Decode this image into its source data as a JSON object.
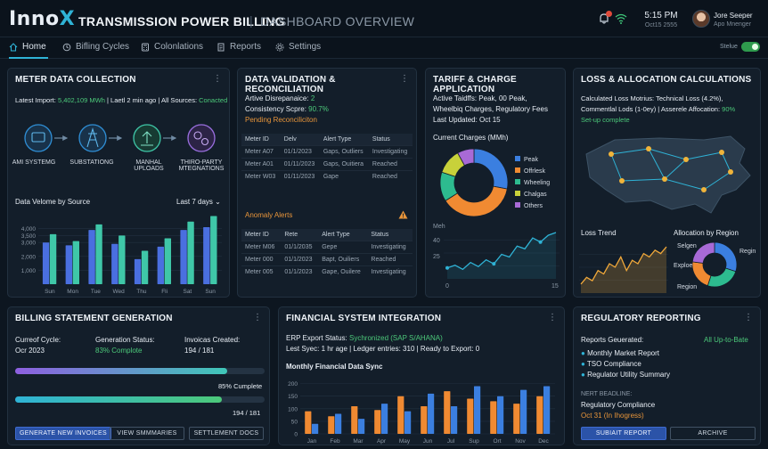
{
  "header": {
    "logo_main": "Inno",
    "logo_accent": "X",
    "title": "TRANSMISSION POWER BILLING",
    "separator": "|",
    "subtitle": "DASHBOARD OVERVIEW",
    "time": "5:15 PM",
    "date": "Oct15 2555",
    "user_name": "Jore Seeper",
    "user_role": "Apo Mnenger"
  },
  "nav": {
    "items": [
      {
        "label": "Home",
        "icon": "home-icon"
      },
      {
        "label": "Bifling Cycles",
        "icon": "cycle-icon"
      },
      {
        "label": "Colonlations",
        "icon": "calculator-icon"
      },
      {
        "label": "Reports",
        "icon": "report-icon"
      },
      {
        "label": "Settings",
        "icon": "gear-icon"
      }
    ],
    "status_label": "Stelue"
  },
  "meter": {
    "title": "METER DATA COLLECTION",
    "latest_prefix": "Latest Import:",
    "latest_value": "5,402,109 MWh",
    "latest_mid": "| Laetl 2 min ago | All Sources:",
    "latest_status": "Conacted",
    "sources": [
      "AMI SYSTEMG",
      "SUBSTATIONG",
      "MANHAL UPLOADS",
      "THIRO-PARTY MTEGNATIONS"
    ],
    "volume_title": "Data Velome by Source",
    "range": "Last 7 days",
    "chart_data": {
      "type": "bar",
      "categories": [
        "Sun",
        "Mon",
        "Tue",
        "Wed",
        "Thu",
        "Fli",
        "Sat",
        "Sun"
      ],
      "yticks": [
        "1,000",
        "2,000",
        "3,000",
        "3,500",
        "4,000"
      ],
      "series": [
        {
          "color": "#4a6fe0",
          "values": [
            3000,
            2800,
            3900,
            2900,
            1800,
            2700,
            3900,
            4100
          ]
        },
        {
          "color": "#3fc7a8",
          "values": [
            3600,
            3100,
            4300,
            3500,
            2400,
            3300,
            4500,
            4900
          ]
        }
      ],
      "ylim": [
        0,
        5000
      ]
    }
  },
  "validation": {
    "title": "DATA VALIDATION & RECONCILIATION",
    "discrepancies_label": "Artive Disrepanaice:",
    "discrepancies_value": "2",
    "consistency_label": "Consistency Scpre:",
    "consistency_value": "90.7%",
    "pending": "Pending Reconciliciton",
    "table1": {
      "headers": [
        "Meter ID",
        "Delv",
        "Alert Type",
        "Status"
      ],
      "rows": [
        [
          "Meter A07",
          "01/1/2023",
          "Gaps, Outliers",
          "Investigating"
        ],
        [
          "Meter A01",
          "01/11/2023",
          "Gaps, Ouitiera",
          "Reached"
        ],
        [
          "Meter W03",
          "01/11/2023",
          "Gape",
          "Reached"
        ]
      ]
    },
    "anomaly_title": "Anomaly Alerts",
    "table2": {
      "headers": [
        "Meter ID",
        "Rete",
        "Alert Type",
        "Status"
      ],
      "rows": [
        [
          "Meter M06",
          "01/1/2035",
          "Gepe",
          "Investigating"
        ],
        [
          "Meter 000",
          "01/1/2023",
          "Bapt, Ouiliers",
          "Reached"
        ],
        [
          "Meter 005",
          "01/1/2023",
          "Gape, Ouilere",
          "Investigating"
        ]
      ]
    }
  },
  "tariff": {
    "title": "TARIFF & CHARGE APPLICATION",
    "line1": "Active Taidffs: Peak, 00 Peak,",
    "line2": "Wheelbiq Charges, Regulatory Fees",
    "line3": "Last Updated: Oct 15",
    "charges_title": "Current Charges (MMh)",
    "chart_data": {
      "type": "pie",
      "categories": [
        "Peak",
        "Offrlesk",
        "Wheeling",
        "Chalgas",
        "Others"
      ],
      "values": [
        28,
        38,
        14,
        12,
        8
      ],
      "colors": [
        "#3b7fe0",
        "#f08a32",
        "#2dbb8f",
        "#c8d13a",
        "#a86ad6"
      ]
    },
    "trend_ylabel": "Meh",
    "trend_yticks": [
      "25",
      "40"
    ],
    "trend_xticks": [
      "0",
      "15"
    ],
    "trend": {
      "type": "line",
      "values": [
        12,
        14,
        11,
        16,
        13,
        18,
        15,
        22,
        20,
        28,
        26,
        34,
        31,
        36,
        38
      ]
    }
  },
  "loss": {
    "title": "LOSS & ALLOCATION CALCULATIONS",
    "line1": "Calculated Loss Motrius: Technical Loss (4.2%),",
    "line2_a": "Commentlal Lods (1-0ey) | Asserele Affocation:",
    "line2_b": "90%",
    "line3": "Set-up complete",
    "trend_title": "Loss Trend",
    "alloc_title": "Allocation by Region",
    "regions": [
      "Selgen",
      "Regin",
      "Exploe",
      "Region"
    ],
    "loss_trend": {
      "type": "area",
      "values": [
        4,
        6,
        5,
        8,
        7,
        10,
        9,
        12,
        8,
        11,
        10,
        13,
        12,
        14,
        13,
        15
      ]
    },
    "alloc": {
      "type": "pie",
      "values": [
        30,
        25,
        22,
        23
      ],
      "colors": [
        "#3b7fe0",
        "#2dbb8f",
        "#f08a32",
        "#a86ad6"
      ]
    }
  },
  "billing": {
    "title": "BILLING STATEMENT GENERATION",
    "cycle_label": "Curreof Cycle:",
    "cycle_value": "Ocr 2023",
    "gen_label": "Generation Status:",
    "gen_value": "83% Complote",
    "inv_label": "Invoicas Created:",
    "inv_value": "194 / 181",
    "progress1": 0.85,
    "progress2": 0.83,
    "pct_label": "85% Cumplete",
    "count_label": "194 / 181",
    "btn_generate": "GENERATE NEW INVOICES",
    "btn_summaries": "VIEW SMMMARIES",
    "btn_settlement": "SETTLEMENT DOCS"
  },
  "financial": {
    "title": "FINANCIAL SYSTEM INTEGRATION",
    "erp_label": "ERP Export Status:",
    "erp_value": "Sychronized (SAP S/AHANA)",
    "sync_line": "Lest Syec: 1 hr age  | Ledger entries: 310  |  Ready to Export: 0",
    "chart_title": "Monthly Financial Data Sync",
    "chart_data": {
      "type": "bar",
      "categories": [
        "Jan",
        "Feb",
        "Mar",
        "Apr",
        "May",
        "Jun",
        "Jul",
        "Sup",
        "Ort",
        "Nov",
        "Dec"
      ],
      "yticks": [
        "0",
        "50",
        "100",
        "150",
        "200"
      ],
      "series": [
        {
          "color": "#f08a32",
          "values": [
            90,
            70,
            110,
            95,
            150,
            110,
            170,
            140,
            130,
            120,
            150
          ]
        },
        {
          "color": "#3b7fe0",
          "values": [
            40,
            80,
            60,
            120,
            90,
            160,
            110,
            190,
            150,
            175,
            190
          ]
        }
      ],
      "ylim": [
        0,
        220
      ]
    }
  },
  "regulatory": {
    "title": "REGULATORY REPORTING",
    "generated_label": "Reports Geuerated:",
    "generated_status": "All Up-to-Bate",
    "reports": [
      "Monthly Market Report",
      "TSO Compliance",
      "Regulator Utility Summary"
    ],
    "deadline_label": "NERT BEADLINE:",
    "deadline_name": "Regulatory Compliance",
    "deadline_date": "Oct 31 (In Ihogress)",
    "btn_submit": "SUBIAIT REPORT",
    "btn_archive": "ARCHIVE"
  }
}
